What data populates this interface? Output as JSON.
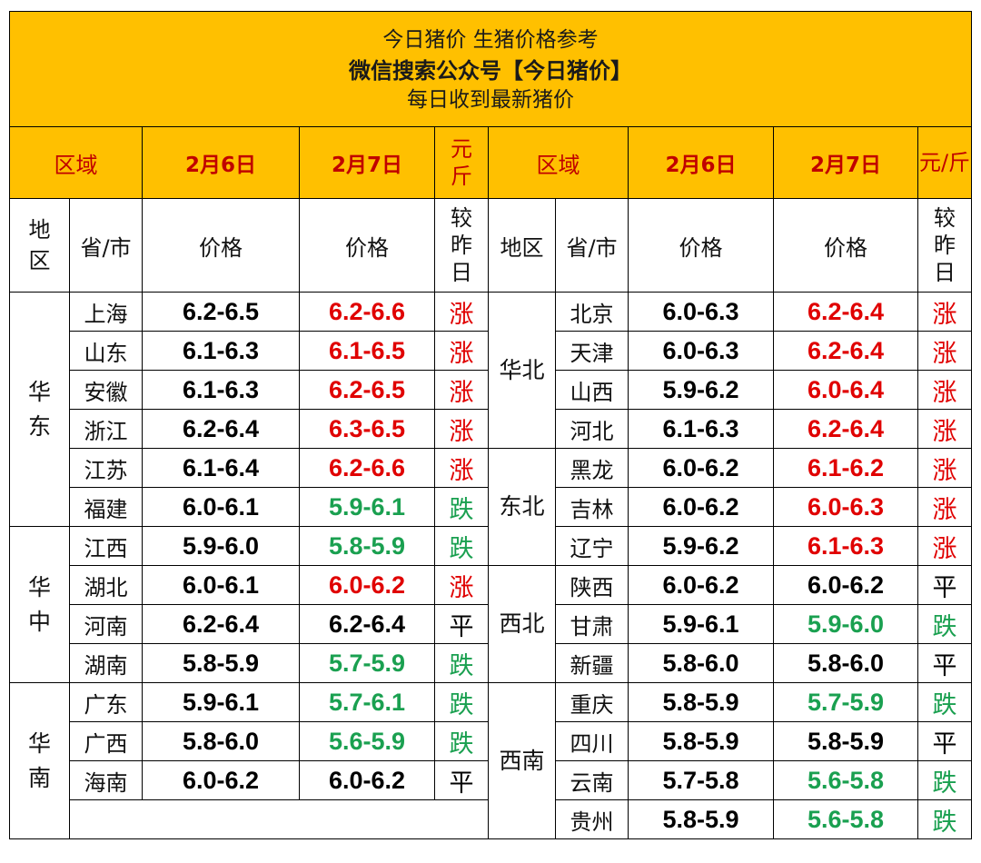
{
  "banner": {
    "line1": "今日猪价  生猪价格参考",
    "line2": "微信搜索公众号【今日猪价】",
    "line3": "每日收到最新猪价"
  },
  "header": {
    "region": "区域",
    "date_prev": "2月6日",
    "date_curr": "2月7日",
    "unit_top": "元",
    "unit_bottom": "斤",
    "unit_right": "元/斤"
  },
  "subheader": {
    "area_top": "地",
    "area_bottom": "区",
    "area_right": "地区",
    "province": "省/市",
    "price": "价格",
    "compare_1": "较",
    "compare_2": "昨",
    "compare_3": "日"
  },
  "colors": {
    "up": "#e00000",
    "down": "#1aa050",
    "flat": "#000000",
    "banner": "#FFC000"
  },
  "left": [
    {
      "province": "上海",
      "prev": "6.2-6.5",
      "curr": "6.2-6.6",
      "change": "涨",
      "trend": "up"
    },
    {
      "province": "山东",
      "prev": "6.1-6.3",
      "curr": "6.1-6.5",
      "change": "涨",
      "trend": "up"
    },
    {
      "province": "安徽",
      "prev": "6.1-6.3",
      "curr": "6.2-6.5",
      "change": "涨",
      "trend": "up"
    },
    {
      "province": "浙江",
      "prev": "6.2-6.4",
      "curr": "6.3-6.5",
      "change": "涨",
      "trend": "up"
    },
    {
      "province": "江苏",
      "prev": "6.1-6.4",
      "curr": "6.2-6.6",
      "change": "涨",
      "trend": "up"
    },
    {
      "province": "福建",
      "prev": "6.0-6.1",
      "curr": "5.9-6.1",
      "change": "跌",
      "trend": "down"
    },
    {
      "province": "江西",
      "prev": "5.9-6.0",
      "curr": "5.8-5.9",
      "change": "跌",
      "trend": "down"
    },
    {
      "province": "湖北",
      "prev": "6.0-6.1",
      "curr": "6.0-6.2",
      "change": "涨",
      "trend": "up"
    },
    {
      "province": "河南",
      "prev": "6.2-6.4",
      "curr": "6.2-6.4",
      "change": "平",
      "trend": "flat"
    },
    {
      "province": "湖南",
      "prev": "5.8-5.9",
      "curr": "5.7-5.9",
      "change": "跌",
      "trend": "down"
    },
    {
      "province": "广东",
      "prev": "5.9-6.1",
      "curr": "5.7-6.1",
      "change": "跌",
      "trend": "down"
    },
    {
      "province": "广西",
      "prev": "5.8-6.0",
      "curr": "5.6-5.9",
      "change": "跌",
      "trend": "down"
    },
    {
      "province": "海南",
      "prev": "6.0-6.2",
      "curr": "6.0-6.2",
      "change": "平",
      "trend": "flat"
    }
  ],
  "right": [
    {
      "province": "北京",
      "prev": "6.0-6.3",
      "curr": "6.2-6.4",
      "change": "涨",
      "trend": "up"
    },
    {
      "province": "天津",
      "prev": "6.0-6.3",
      "curr": "6.2-6.4",
      "change": "涨",
      "trend": "up"
    },
    {
      "province": "山西",
      "prev": "5.9-6.2",
      "curr": "6.0-6.4",
      "change": "涨",
      "trend": "up"
    },
    {
      "province": "河北",
      "prev": "6.1-6.3",
      "curr": "6.2-6.4",
      "change": "涨",
      "trend": "up"
    },
    {
      "province": "黑龙",
      "prev": "6.0-6.2",
      "curr": "6.1-6.2",
      "change": "涨",
      "trend": "up"
    },
    {
      "province": "吉林",
      "prev": "6.0-6.2",
      "curr": "6.0-6.3",
      "change": "涨",
      "trend": "up"
    },
    {
      "province": "辽宁",
      "prev": "5.9-6.2",
      "curr": "6.1-6.3",
      "change": "涨",
      "trend": "up"
    },
    {
      "province": "陕西",
      "prev": "6.0-6.2",
      "curr": "6.0-6.2",
      "change": "平",
      "trend": "flat"
    },
    {
      "province": "甘肃",
      "prev": "5.9-6.1",
      "curr": "5.9-6.0",
      "change": "跌",
      "trend": "down"
    },
    {
      "province": "新疆",
      "prev": "5.8-6.0",
      "curr": "5.8-6.0",
      "change": "平",
      "trend": "flat"
    },
    {
      "province": "重庆",
      "prev": "5.8-5.9",
      "curr": "5.7-5.9",
      "change": "跌",
      "trend": "down"
    },
    {
      "province": "四川",
      "prev": "5.8-5.9",
      "curr": "5.8-5.9",
      "change": "平",
      "trend": "flat"
    },
    {
      "province": "云南",
      "prev": "5.7-5.8",
      "curr": "5.6-5.8",
      "change": "跌",
      "trend": "down"
    },
    {
      "province": "贵州",
      "prev": "5.8-5.9",
      "curr": "5.6-5.8",
      "change": "跌",
      "trend": "down"
    }
  ],
  "regions_left": [
    {
      "c1": "华",
      "c2": "东"
    },
    {
      "c1": "华",
      "c2": "中"
    },
    {
      "c1": "华",
      "c2": "南"
    }
  ],
  "regions_right": [
    "华北",
    "东北",
    "西北",
    "西南"
  ]
}
